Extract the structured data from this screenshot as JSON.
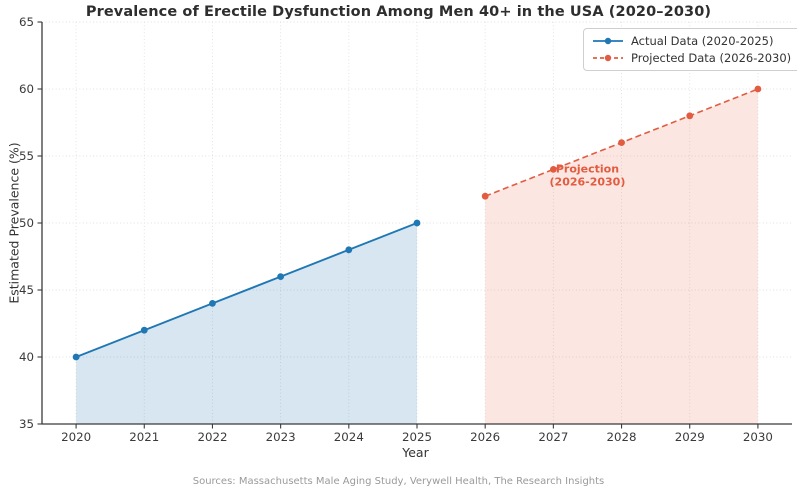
{
  "chart_data": {
    "type": "line",
    "title": "Prevalence of Erectile Dysfunction Among Men 40+ in the USA (2020–2030)",
    "xlabel": "Year",
    "ylabel": "Estimated Prevalence (%)",
    "xlim": [
      2019.5,
      2030.5
    ],
    "ylim": [
      35,
      65
    ],
    "xticks": [
      2020,
      2021,
      2022,
      2023,
      2024,
      2025,
      2026,
      2027,
      2028,
      2029,
      2030
    ],
    "yticks": [
      35,
      40,
      45,
      50,
      55,
      60,
      65
    ],
    "grid": true,
    "legend_position": "top-right",
    "series": [
      {
        "name": "Actual Data (2020-2025)",
        "x": [
          2020,
          2021,
          2022,
          2023,
          2024,
          2025
        ],
        "values": [
          40,
          42,
          44,
          46,
          48,
          50
        ],
        "color": "#1f77b4",
        "line_style": "solid",
        "marker": "circle",
        "area_fill": "rgba(31,119,180,0.18)"
      },
      {
        "name": "Projected Data (2026-2030)",
        "x": [
          2026,
          2027,
          2028,
          2029,
          2030
        ],
        "values": [
          52,
          54,
          56,
          58,
          60
        ],
        "color": "#e25c41",
        "line_style": "dashed",
        "marker": "circle",
        "area_fill": "rgba(240,106,76,0.17)"
      }
    ],
    "annotation": {
      "lines": [
        "Projection",
        "(2026-2030)"
      ],
      "x": 2027.5,
      "y": 54.0,
      "color": "#e25c41"
    },
    "source_note": "Sources: Massachusetts Male Aging Study, Verywell Health, The Research Insights"
  }
}
